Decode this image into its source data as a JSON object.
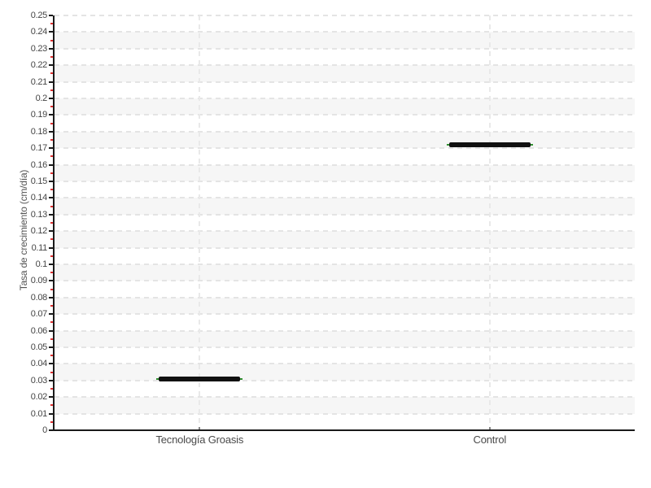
{
  "chart_data": {
    "type": "scatter",
    "marker_style": "thick-horizontal-dash-black-with-green-edges",
    "categories": [
      "Tecnología Groasis",
      "Control"
    ],
    "values": [
      0.031,
      0.172
    ],
    "title": "",
    "xlabel": "",
    "ylabel": "Tasa de crecimiento (cm/día)",
    "ylim": [
      0,
      0.25
    ],
    "ytick_step": 0.01,
    "minor_tick_step": 0.005,
    "yticks": [
      "0",
      "0.01",
      "0.02",
      "0.03",
      "0.04",
      "0.05",
      "0.06",
      "0.07",
      "0.08",
      "0.09",
      "0.1",
      "0.11",
      "0.12",
      "0.13",
      "0.14",
      "0.15",
      "0.16",
      "0.17",
      "0.18",
      "0.19",
      "0.2",
      "0.21",
      "0.22",
      "0.23",
      "0.24",
      "0.25"
    ],
    "grid": {
      "horizontal": "dashed every 0.01",
      "vertical": "dashed at category centers",
      "bands": "alternating light-gray horizontal bands every 0.01"
    },
    "legend": null
  },
  "colors": {
    "background": "#ffffff",
    "axis": "#1a1a1a",
    "major_tick": "#1a1a1a",
    "minor_tick": "#e03131",
    "grid_line": "#e4e4e4",
    "band": "#f6f6f6",
    "mark_core": "#111111",
    "mark_edge": "#2f8f2f",
    "tick_label": "#444444",
    "category_label": "#4a4a4a"
  }
}
